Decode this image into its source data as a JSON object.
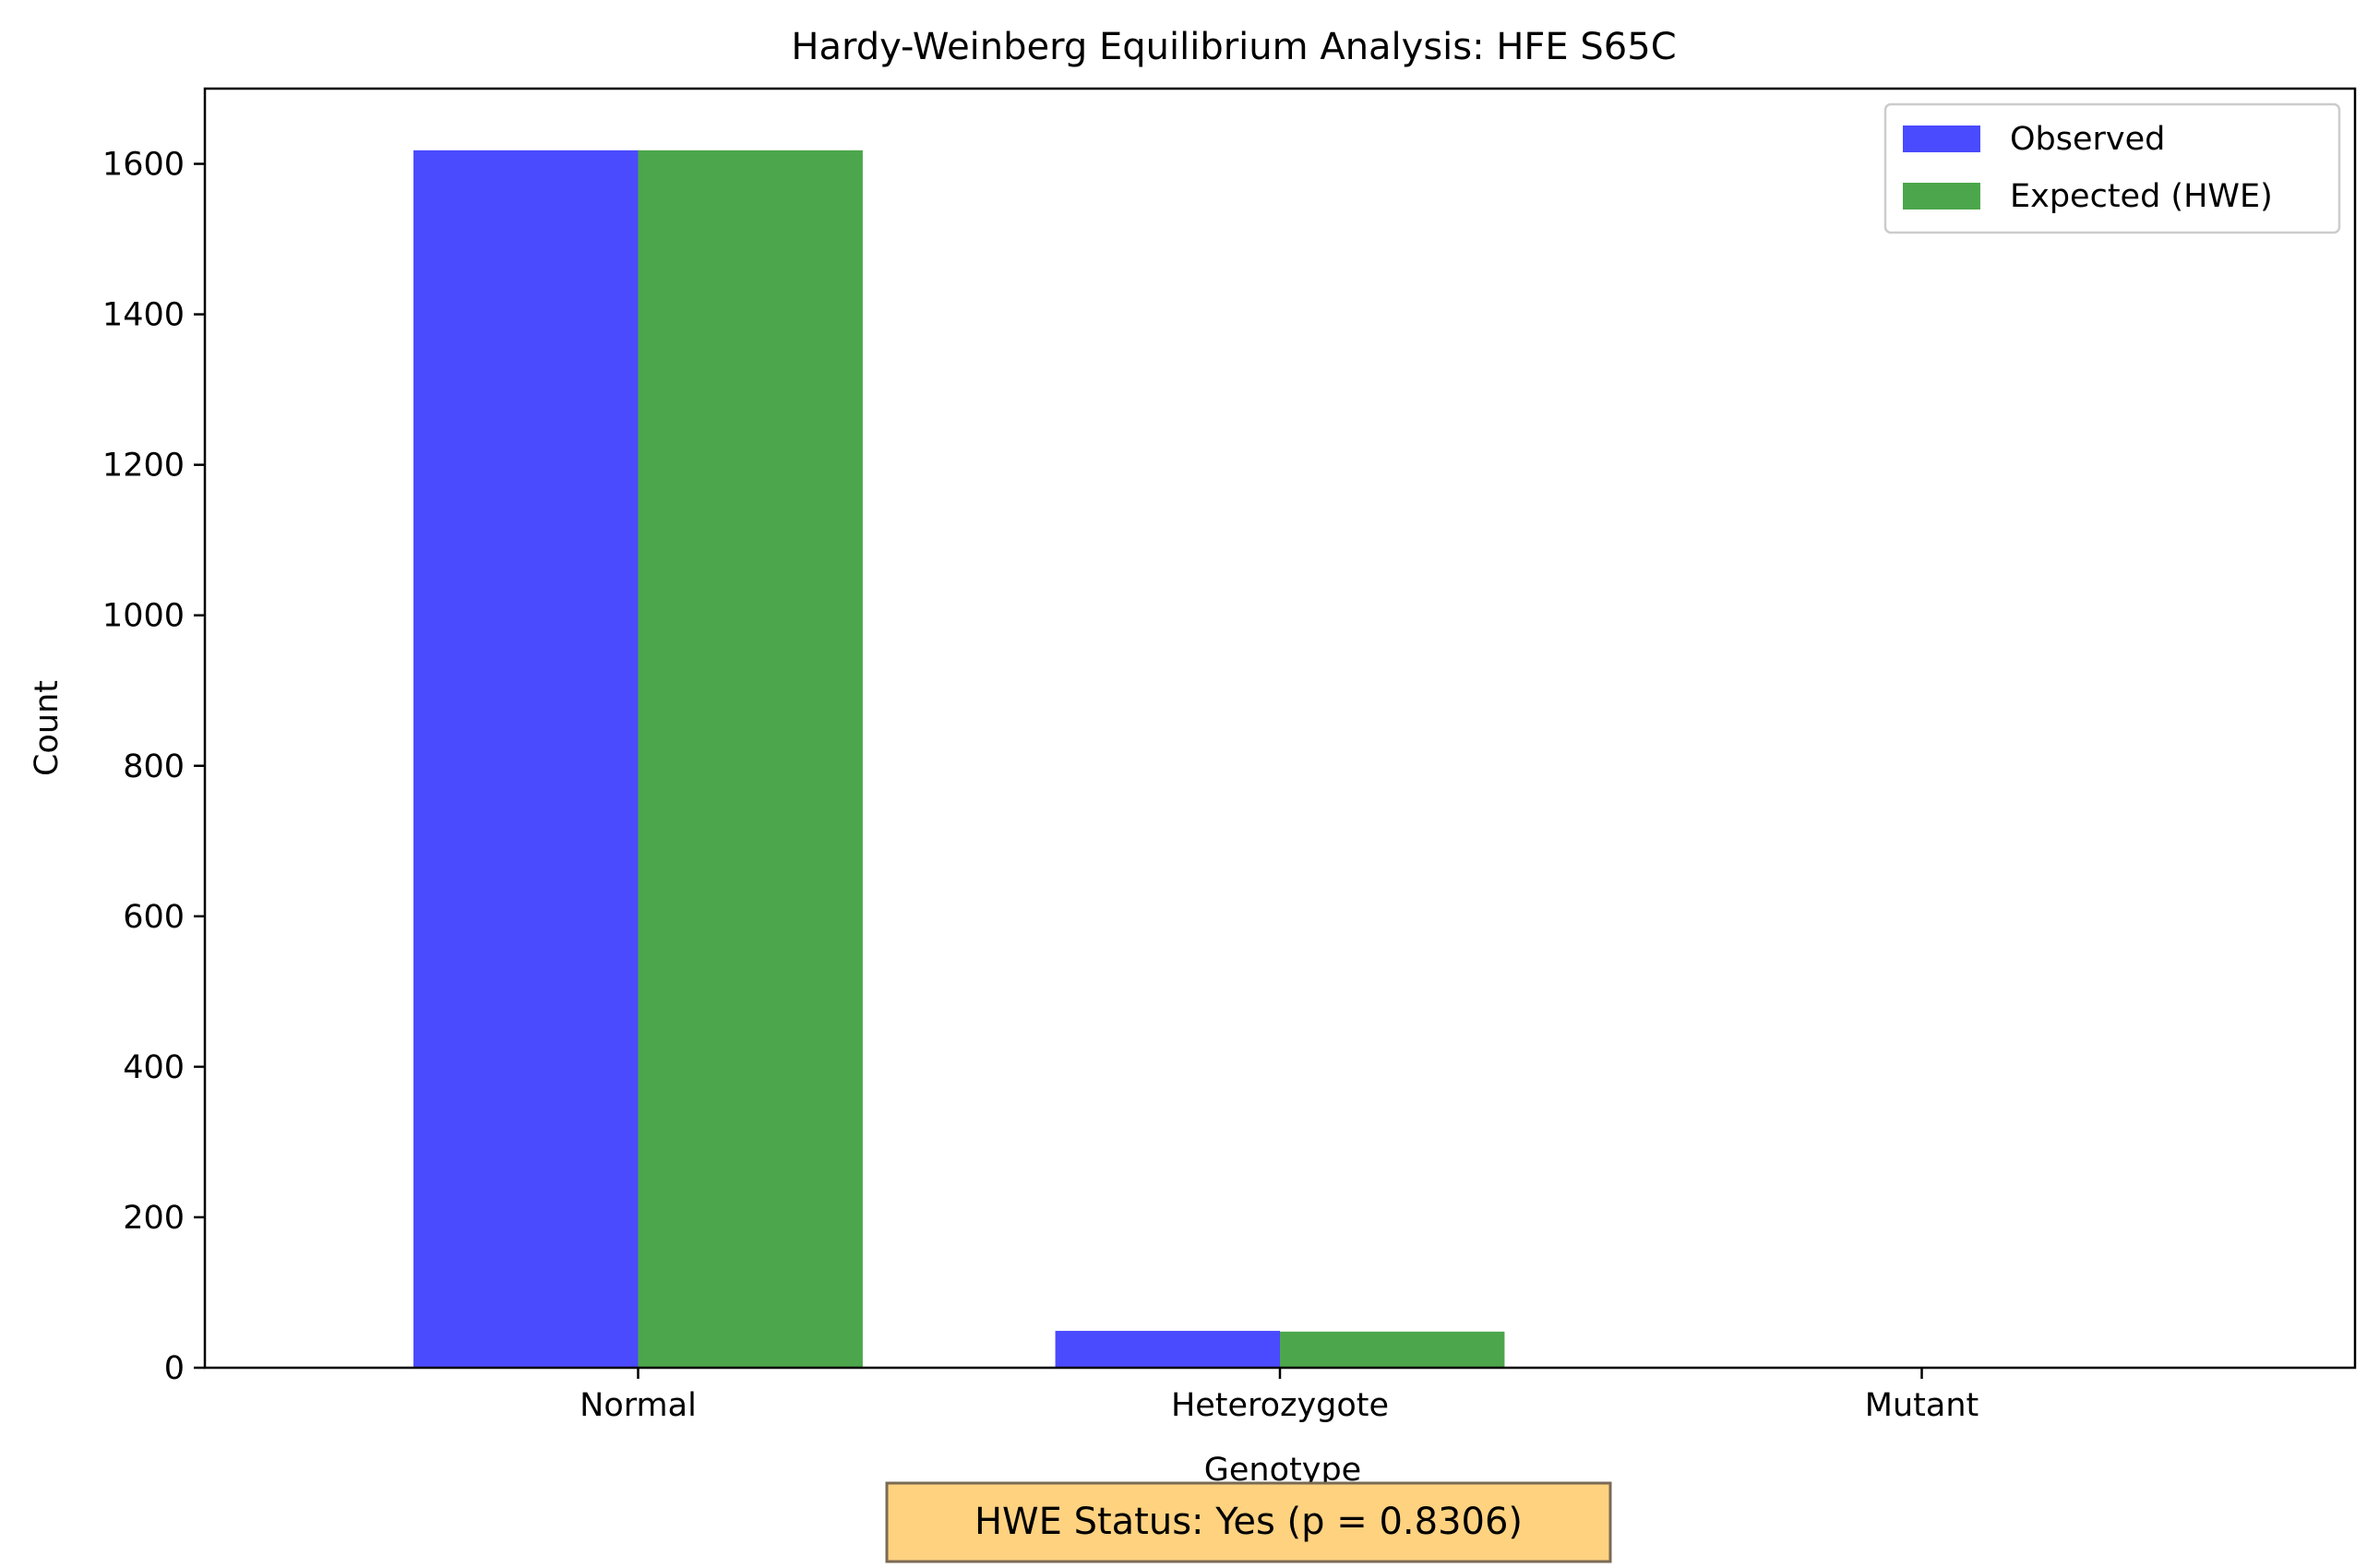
{
  "chart_data": {
    "type": "bar",
    "title": "Hardy-Weinberg Equilibrium Analysis: HFE S65C",
    "xlabel": "Genotype",
    "ylabel": "Count",
    "categories": [
      "Normal",
      "Heterozygote",
      "Mutant"
    ],
    "series": [
      {
        "name": "Observed",
        "values": [
          1618,
          49,
          0
        ],
        "color": "#4a4aff"
      },
      {
        "name": "Expected (HWE)",
        "values": [
          1618,
          48,
          0.4
        ],
        "color": "#4ca64c"
      }
    ],
    "ylim": [
      0,
      1700
    ],
    "yticks": [
      0,
      200,
      400,
      600,
      800,
      1000,
      1200,
      1400,
      1600
    ],
    "grid": false,
    "legend": "top-right",
    "annotation": "HWE Status: Yes (p = 0.8306)",
    "annotation_color": "#ffd280"
  }
}
